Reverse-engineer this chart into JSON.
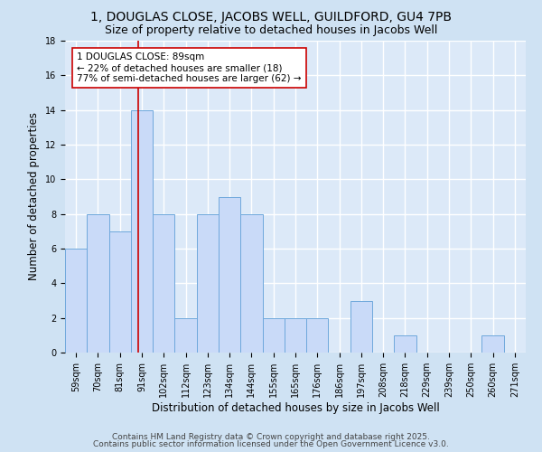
{
  "title1": "1, DOUGLAS CLOSE, JACOBS WELL, GUILDFORD, GU4 7PB",
  "title2": "Size of property relative to detached houses in Jacobs Well",
  "xlabel": "Distribution of detached houses by size in Jacobs Well",
  "ylabel": "Number of detached properties",
  "bin_labels": [
    "59sqm",
    "70sqm",
    "81sqm",
    "91sqm",
    "102sqm",
    "112sqm",
    "123sqm",
    "134sqm",
    "144sqm",
    "155sqm",
    "165sqm",
    "176sqm",
    "186sqm",
    "197sqm",
    "208sqm",
    "218sqm",
    "229sqm",
    "239sqm",
    "250sqm",
    "260sqm",
    "271sqm"
  ],
  "bar_values": [
    6,
    8,
    7,
    14,
    8,
    2,
    8,
    9,
    8,
    2,
    2,
    2,
    0,
    3,
    0,
    1,
    0,
    0,
    0,
    1,
    0
  ],
  "bar_color": "#c9daf8",
  "bar_edge_color": "#6fa8dc",
  "fig_bg_color": "#cfe2f3",
  "plot_bg_color": "#dce9f8",
  "grid_color": "#ffffff",
  "annotation_text_line1": "1 DOUGLAS CLOSE: 89sqm",
  "annotation_text_line2": "← 22% of detached houses are smaller (18)",
  "annotation_text_line3": "77% of semi-detached houses are larger (62) →",
  "vline_x_index": 2.85,
  "vline_color": "#cc0000",
  "ylim": [
    0,
    18
  ],
  "yticks": [
    0,
    2,
    4,
    6,
    8,
    10,
    12,
    14,
    16,
    18
  ],
  "footer_line1": "Contains HM Land Registry data © Crown copyright and database right 2025.",
  "footer_line2": "Contains public sector information licensed under the Open Government Licence v3.0.",
  "title1_fontsize": 10,
  "title2_fontsize": 9,
  "xlabel_fontsize": 8.5,
  "ylabel_fontsize": 8.5,
  "tick_fontsize": 7,
  "footer_fontsize": 6.5,
  "annotation_fontsize": 7.5
}
